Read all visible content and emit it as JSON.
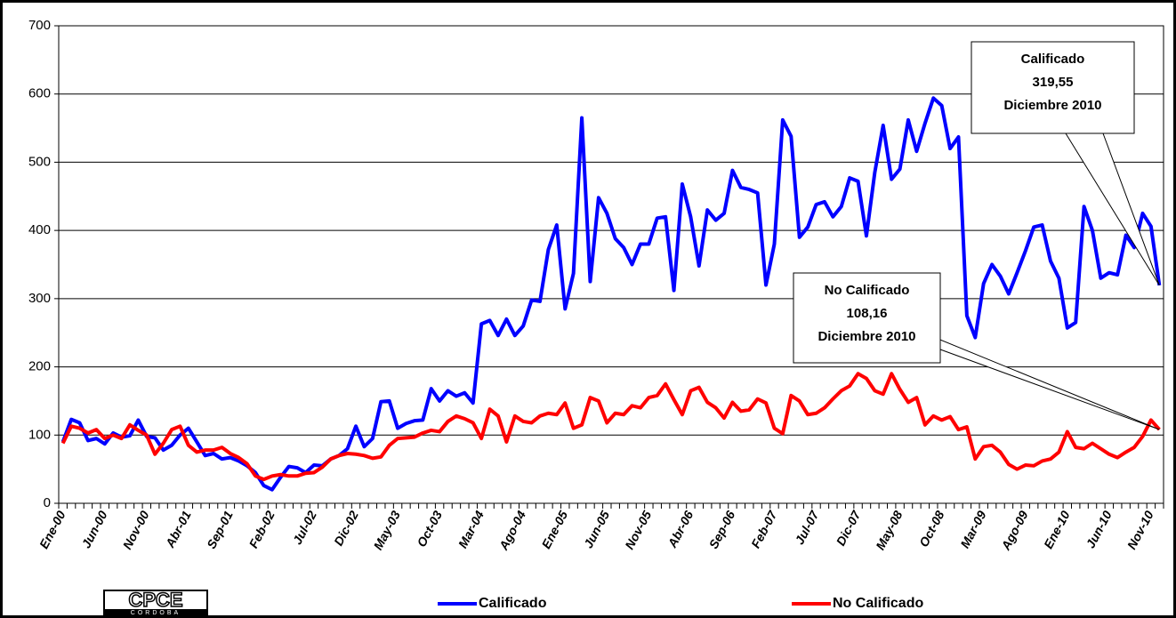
{
  "chart_data": {
    "type": "line",
    "categories": [
      "Ene-00",
      null,
      null,
      null,
      null,
      "Jun-00",
      null,
      null,
      null,
      null,
      "Nov-00",
      null,
      null,
      null,
      null,
      "Abr-01",
      null,
      null,
      null,
      null,
      "Sep-01",
      null,
      null,
      null,
      null,
      "Feb-02",
      null,
      null,
      null,
      null,
      "Jul-02",
      null,
      null,
      null,
      null,
      "Dic-02",
      null,
      null,
      null,
      null,
      "May-03",
      null,
      null,
      null,
      null,
      "Oct-03",
      null,
      null,
      null,
      null,
      "Mar-04",
      null,
      null,
      null,
      null,
      "Ago-04",
      null,
      null,
      null,
      null,
      "Ene-05",
      null,
      null,
      null,
      null,
      "Jun-05",
      null,
      null,
      null,
      null,
      "Nov-05",
      null,
      null,
      null,
      null,
      "Abr-06",
      null,
      null,
      null,
      null,
      "Sep-06",
      null,
      null,
      null,
      null,
      "Feb-07",
      null,
      null,
      null,
      null,
      "Jul-07",
      null,
      null,
      null,
      null,
      "Dic-07",
      null,
      null,
      null,
      null,
      "May-08",
      null,
      null,
      null,
      null,
      "Oct-08",
      null,
      null,
      null,
      null,
      "Mar-09",
      null,
      null,
      null,
      null,
      "Ago-09",
      null,
      null,
      null,
      null,
      "Ene-10",
      null,
      null,
      null,
      null,
      "Jun-10",
      null,
      null,
      null,
      null,
      "Nov-10",
      null
    ],
    "series": [
      {
        "name": "Calificado",
        "color": "#0000ff",
        "values": [
          90,
          123,
          118,
          92,
          95,
          87,
          103,
          97,
          99,
          122,
          98,
          96,
          78,
          85,
          100,
          110,
          90,
          70,
          73,
          65,
          67,
          62,
          55,
          45,
          26,
          20,
          38,
          54,
          52,
          45,
          56,
          55,
          65,
          70,
          80,
          113,
          83,
          95,
          149,
          150,
          110,
          117,
          121,
          122,
          168,
          150,
          165,
          157,
          162,
          147,
          263,
          268,
          246,
          270,
          246,
          260,
          298,
          296,
          372,
          408,
          285,
          337,
          565,
          325,
          448,
          425,
          388,
          375,
          350,
          380,
          380,
          418,
          420,
          312,
          468,
          420,
          348,
          430,
          415,
          425,
          488,
          463,
          460,
          455,
          320,
          380,
          562,
          538,
          390,
          405,
          438,
          442,
          420,
          435,
          477,
          472,
          392,
          485,
          554,
          475,
          490,
          562,
          516,
          557,
          594,
          583,
          520,
          537,
          275,
          243,
          322,
          350,
          333,
          307,
          338,
          370,
          405,
          408,
          355,
          330,
          257,
          265,
          435,
          400,
          330,
          338,
          335,
          393,
          375,
          425,
          406,
          319.55
        ]
      },
      {
        "name": "No Calificado",
        "color": "#ff0000",
        "values": [
          88,
          113,
          110,
          103,
          108,
          95,
          100,
          95,
          115,
          107,
          100,
          72,
          88,
          108,
          113,
          85,
          75,
          78,
          78,
          82,
          73,
          67,
          58,
          40,
          35,
          40,
          42,
          40,
          40,
          44,
          45,
          53,
          65,
          70,
          73,
          72,
          70,
          66,
          68,
          85,
          95,
          96,
          97,
          103,
          107,
          105,
          120,
          128,
          124,
          118,
          95,
          138,
          128,
          90,
          128,
          120,
          118,
          128,
          132,
          130,
          147,
          110,
          115,
          155,
          150,
          118,
          132,
          130,
          143,
          140,
          155,
          158,
          175,
          152,
          130,
          165,
          170,
          148,
          140,
          125,
          148,
          135,
          137,
          153,
          147,
          110,
          102,
          158,
          150,
          130,
          132,
          140,
          153,
          165,
          172,
          190,
          183,
          165,
          160,
          190,
          167,
          148,
          155,
          115,
          128,
          122,
          127,
          108,
          112,
          65,
          83,
          85,
          75,
          57,
          50,
          56,
          55,
          62,
          65,
          75,
          105,
          82,
          80,
          88,
          80,
          72,
          67,
          75,
          82,
          98,
          122,
          108.16
        ]
      }
    ],
    "ylim": [
      0,
      700
    ],
    "yticks": [
      0,
      100,
      200,
      300,
      400,
      500,
      600,
      700
    ],
    "grid": true,
    "legend": "bottom",
    "annotations": [
      {
        "text": [
          "Calificado",
          "319,55",
          "Diciembre 2010"
        ]
      },
      {
        "text": [
          "No Calificado",
          "108,16",
          "Diciembre 2010"
        ]
      }
    ],
    "logo": {
      "text": "CPCE",
      "subtext": "CORDOBA"
    }
  }
}
